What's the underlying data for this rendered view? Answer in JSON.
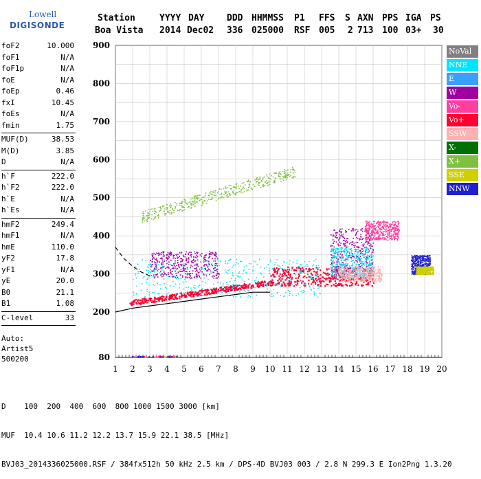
{
  "logo": {
    "line1": "Lowell",
    "line2": "DIGISONDE"
  },
  "header": {
    "labels": [
      "Station",
      "YYYY",
      "DAY",
      "DDD",
      "HHMMSS",
      "P1",
      "FFS",
      "S",
      "AXN",
      "PPS",
      "IGA",
      "PS"
    ],
    "values": [
      "Boa Vista",
      "2014",
      "Dec02",
      "336",
      "025000",
      "RSF",
      "005",
      "2",
      "713",
      "100",
      "03+",
      "30"
    ]
  },
  "params": [
    {
      "name": "foF2",
      "value": "10.000"
    },
    {
      "name": "foF1",
      "value": "N/A"
    },
    {
      "name": "foF1p",
      "value": "N/A"
    },
    {
      "name": "foE",
      "value": "N/A"
    },
    {
      "name": "foEp",
      "value": "0.46"
    },
    {
      "name": "fxI",
      "value": "10.45"
    },
    {
      "name": "foEs",
      "value": "N/A"
    },
    {
      "name": "fmin",
      "value": "1.75"
    },
    {
      "name": "MUF(D)",
      "value": "38.53"
    },
    {
      "name": "M(D)",
      "value": "3.85"
    },
    {
      "name": "D",
      "value": "N/A"
    },
    {
      "name": "h`F",
      "value": "222.0"
    },
    {
      "name": "h`F2",
      "value": "222.0"
    },
    {
      "name": "h`E",
      "value": "N/A"
    },
    {
      "name": "h`Es",
      "value": "N/A"
    },
    {
      "name": "hmF2",
      "value": "249.4"
    },
    {
      "name": "hmF1",
      "value": "N/A"
    },
    {
      "name": "hmE",
      "value": "110.0"
    },
    {
      "name": "yF2",
      "value": "17.8"
    },
    {
      "name": "yF1",
      "value": "N/A"
    },
    {
      "name": "yE",
      "value": "20.0"
    },
    {
      "name": "B0",
      "value": "21.1"
    },
    {
      "name": "B1",
      "value": "1.08"
    },
    {
      "name": "C-level",
      "value": "33"
    }
  ],
  "auto": {
    "line1": "Auto:",
    "line2": "Artist5",
    "line3": "500200"
  },
  "legend": [
    {
      "label": "NoVal",
      "color": "#808080"
    },
    {
      "label": "NNE",
      "color": "#00e5ff"
    },
    {
      "label": "E",
      "color": "#3aa0ff"
    },
    {
      "label": "W",
      "color": "#a000a0"
    },
    {
      "label": "Vo-",
      "color": "#ff3ea0"
    },
    {
      "label": "Vo+",
      "color": "#ff0030"
    },
    {
      "label": "SSW",
      "color": "#ffb0b0"
    },
    {
      "label": "X-",
      "color": "#007000"
    },
    {
      "label": "X+",
      "color": "#80c040"
    },
    {
      "label": "SSE",
      "color": "#d0d000"
    },
    {
      "label": "NNW",
      "color": "#2020d0"
    }
  ],
  "footer": {
    "line1": "D    100  200  400  600  800 1000 1500 3000 [km]",
    "line2": "MUF  10.4 10.6 11.2 12.2 13.7 15.9 22.1 38.5 [MHz]",
    "line3": "BVJ03_2014336025000.RSF / 384fx512h 50 kHz 2.5 km / DPS-4D BVJ03 003 / 2.8 N 299.3 E Ion2Png 1.3.20"
  },
  "chart_data": {
    "type": "scatter",
    "xlim": [
      1,
      20
    ],
    "ylim": [
      80,
      900
    ],
    "x_ticks": [
      "1",
      "2",
      "3",
      "4",
      "5",
      "6",
      "7",
      "8",
      "9",
      "10",
      "11",
      "12",
      "13",
      "14",
      "15",
      "16",
      "17",
      "18",
      "19",
      "20"
    ],
    "y_ticks": [
      "80",
      "200",
      "300",
      "400",
      "500",
      "600",
      "700",
      "800",
      "900"
    ],
    "grid": true,
    "legend_placement": "right",
    "traces": [
      {
        "name": "profile",
        "x": [
          1.0,
          2.0,
          3.0,
          4.0,
          5.0,
          6.0,
          7.0,
          8.0,
          9.0,
          10.0
        ],
        "y": [
          200,
          210,
          216,
          222,
          228,
          234,
          240,
          246,
          252,
          252
        ]
      },
      {
        "name": "dashed",
        "x": [
          1.0,
          1.5,
          2.0,
          2.5,
          3.0
        ],
        "y": [
          370,
          340,
          320,
          305,
          295
        ]
      }
    ],
    "clusters": [
      {
        "series": "Vo+",
        "x": [
          1.8,
          10.2
        ],
        "y": [
          225,
          285
        ]
      },
      {
        "series": "Vo+",
        "x": [
          10.0,
          16.0
        ],
        "y": [
          270,
          320
        ]
      },
      {
        "series": "NNE",
        "x": [
          2.0,
          13.0
        ],
        "y": [
          240,
          340
        ]
      },
      {
        "series": "W",
        "x": [
          3.0,
          7.0
        ],
        "y": [
          290,
          360
        ]
      },
      {
        "series": "W",
        "x": [
          13.5,
          16.0
        ],
        "y": [
          290,
          420
        ]
      },
      {
        "series": "Vo-",
        "x": [
          15.5,
          17.5
        ],
        "y": [
          390,
          440
        ]
      },
      {
        "series": "X+",
        "x": [
          2.5,
          11.5
        ],
        "y": [
          440,
          580
        ]
      },
      {
        "series": "NNE",
        "x": [
          13.5,
          16.0
        ],
        "y": [
          290,
          370
        ]
      },
      {
        "series": "SSW",
        "x": [
          14.0,
          16.5
        ],
        "y": [
          280,
          320
        ]
      },
      {
        "series": "NNW",
        "x": [
          18.2,
          19.3
        ],
        "y": [
          300,
          350
        ]
      },
      {
        "series": "SSE",
        "x": [
          18.5,
          19.5
        ],
        "y": [
          300,
          320
        ]
      }
    ]
  }
}
